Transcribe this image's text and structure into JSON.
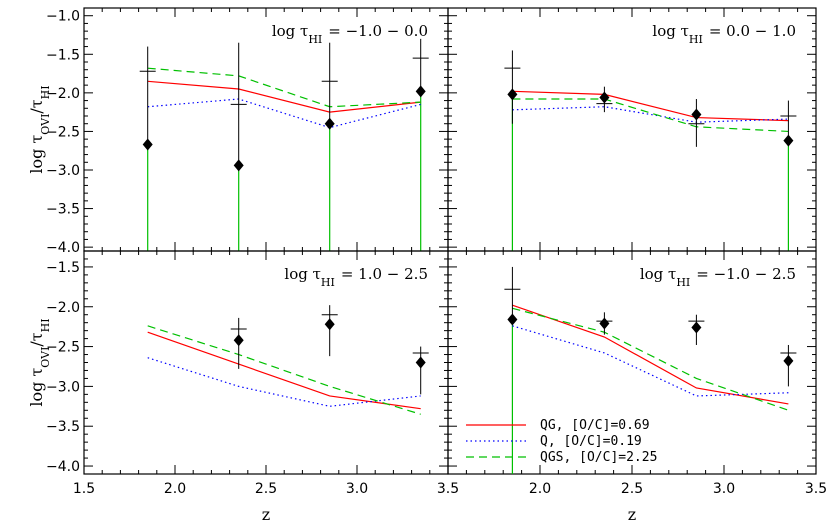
{
  "chart_data": {
    "type": "line",
    "layout": "2x2 grid of panels sharing axes",
    "xlabel": "z",
    "ylabel_base": "log τ",
    "ylabel_sub1": "OVI",
    "ylabel_mid": "/τ",
    "ylabel_sub2": "HI",
    "xlim": [
      1.5,
      3.5
    ],
    "ylim": [
      -4.05,
      -0.9
    ],
    "x_ticks": [
      1.5,
      2.0,
      2.5,
      3.0,
      3.5
    ],
    "x_tick_labels": [
      "1.5",
      "2.0",
      "2.5",
      "3.0",
      "3.5"
    ],
    "x_tick_labels_left": [
      "1.5",
      "2.0",
      "2.5",
      "3.0",
      "3.5"
    ],
    "x_tick_labels_right": [
      "",
      "2.0",
      "2.5",
      "3.0",
      "3.5"
    ],
    "y_ticks_top": [
      -1.0,
      -1.5,
      -2.0,
      -2.5,
      -3.0,
      -3.5,
      -4.0
    ],
    "y_tick_labels_top": [
      "-1.0",
      "-1.5",
      "-2.0",
      "-2.5",
      "-3.0",
      "-3.5",
      "-4.0"
    ],
    "y_ticks_bottom": [
      -1.5,
      -2.0,
      -2.5,
      -3.0,
      -3.5,
      -4.0
    ],
    "y_tick_labels_bottom": [
      "-1.5",
      "-2.0",
      "-2.5",
      "-3.0",
      "-3.5",
      "-4.0"
    ],
    "grid": false,
    "legend_position": "bottom-left of bottom-right panel",
    "legend": [
      {
        "label": "QG, [O/C]=0.69",
        "color": "#ff0000",
        "style": "solid"
      },
      {
        "label": "Q, [O/C]=0.19",
        "color": "#0000ff",
        "style": "dotted"
      },
      {
        "label": "QGS, [O/C]=2.25",
        "color": "#00c000",
        "style": "dashed"
      }
    ],
    "panels": [
      {
        "position": "top-left",
        "title_text": "log τ",
        "title_sub": "HI",
        "title_range": "= −1.0 −  0.0",
        "x": [
          1.85,
          2.35,
          2.85,
          3.35
        ],
        "series": [
          {
            "values": [
              -1.85,
              -1.95,
              -2.25,
              -2.12
            ],
            "color": "#ff0000",
            "style": "solid"
          },
          {
            "values": [
              -2.18,
              -2.08,
              -2.45,
              -2.15
            ],
            "color": "#0000ff",
            "style": "dotted"
          },
          {
            "values": [
              -1.68,
              -1.78,
              -2.18,
              -2.12
            ],
            "color": "#00c000",
            "style": "dashed"
          }
        ],
        "points": [
          {
            "x": 1.85,
            "y": -2.67,
            "err_low": null,
            "err_high": -1.4,
            "bar": -1.72,
            "green_to_bottom": true
          },
          {
            "x": 2.35,
            "y": -2.94,
            "err_low": null,
            "err_high": -1.35,
            "bar": -2.15,
            "green_to_bottom": true
          },
          {
            "x": 2.85,
            "y": -2.4,
            "err_low": null,
            "err_high": -1.35,
            "bar": -1.85,
            "green_to_bottom": true
          },
          {
            "x": 3.35,
            "y": -1.98,
            "err_low": null,
            "err_high": -1.3,
            "bar": -1.55,
            "green_to_bottom": true
          }
        ]
      },
      {
        "position": "top-right",
        "title_text": "log τ",
        "title_sub": "HI",
        "title_range": "=  0.0 −  1.0",
        "x": [
          1.85,
          2.35,
          2.85,
          3.35
        ],
        "series": [
          {
            "values": [
              -1.98,
              -2.02,
              -2.32,
              -2.36
            ],
            "color": "#ff0000",
            "style": "solid"
          },
          {
            "values": [
              -2.22,
              -2.18,
              -2.38,
              -2.34
            ],
            "color": "#0000ff",
            "style": "dotted"
          },
          {
            "values": [
              -2.08,
              -2.08,
              -2.44,
              -2.5
            ],
            "color": "#00c000",
            "style": "dashed"
          }
        ],
        "points": [
          {
            "x": 1.85,
            "y": -2.02,
            "err_low": -2.4,
            "err_high": -1.45,
            "bar": -1.68,
            "green_to_bottom": true
          },
          {
            "x": 2.35,
            "y": -2.06,
            "err_low": -2.25,
            "err_high": -1.92,
            "bar": -2.14,
            "green_to_bottom": false
          },
          {
            "x": 2.85,
            "y": -2.28,
            "err_low": -2.7,
            "err_high": -2.08,
            "bar": -2.4,
            "green_to_bottom": false
          },
          {
            "x": 3.35,
            "y": -2.62,
            "err_low": null,
            "err_high": -2.1,
            "bar": -2.3,
            "green_to_bottom": true
          }
        ]
      },
      {
        "position": "bottom-left",
        "title_text": "log τ",
        "title_sub": "HI",
        "title_range": "=  1.0 −  2.5",
        "x": [
          1.85,
          2.35,
          2.85,
          3.35
        ],
        "series": [
          {
            "values": [
              -2.32,
              -2.72,
              -3.12,
              -3.28
            ],
            "color": "#ff0000",
            "style": "solid"
          },
          {
            "values": [
              -2.64,
              -3.0,
              -3.25,
              -3.12
            ],
            "color": "#0000ff",
            "style": "dotted"
          },
          {
            "values": [
              -2.24,
              -2.6,
              -3.0,
              -3.35
            ],
            "color": "#00c000",
            "style": "dashed"
          }
        ],
        "points": [
          {
            "x": 2.35,
            "y": -2.42,
            "err_low": -2.78,
            "err_high": -2.14,
            "bar": -2.28,
            "green_to_bottom": false
          },
          {
            "x": 2.85,
            "y": -2.22,
            "err_low": -2.62,
            "err_high": -1.98,
            "bar": -2.1,
            "green_to_bottom": false
          },
          {
            "x": 3.35,
            "y": -2.7,
            "err_low": -3.1,
            "err_high": -2.5,
            "bar": -2.58,
            "green_to_bottom": false
          }
        ]
      },
      {
        "position": "bottom-right",
        "title_text": "log τ",
        "title_sub": "HI",
        "title_range": "= −1.0 −  2.5",
        "x": [
          1.85,
          2.35,
          2.85,
          3.35
        ],
        "series": [
          {
            "values": [
              -1.98,
              -2.38,
              -3.02,
              -3.22
            ],
            "color": "#ff0000",
            "style": "solid"
          },
          {
            "values": [
              -2.24,
              -2.58,
              -3.12,
              -3.08
            ],
            "color": "#0000ff",
            "style": "dotted"
          },
          {
            "values": [
              -2.02,
              -2.32,
              -2.9,
              -3.3
            ],
            "color": "#00c000",
            "style": "dashed"
          }
        ],
        "points": [
          {
            "x": 1.85,
            "y": -2.16,
            "err_low": null,
            "err_high": -1.5,
            "bar": -1.78,
            "green_to_bottom": true
          },
          {
            "x": 2.35,
            "y": -2.21,
            "err_low": -2.35,
            "err_high": -2.07,
            "bar": -2.18,
            "green_to_bottom": false
          },
          {
            "x": 2.85,
            "y": -2.26,
            "err_low": -2.48,
            "err_high": -2.1,
            "bar": -2.18,
            "green_to_bottom": false
          },
          {
            "x": 3.35,
            "y": -2.68,
            "err_low": -3.0,
            "err_high": -2.48,
            "bar": -2.58,
            "green_to_bottom": false
          }
        ]
      }
    ]
  }
}
